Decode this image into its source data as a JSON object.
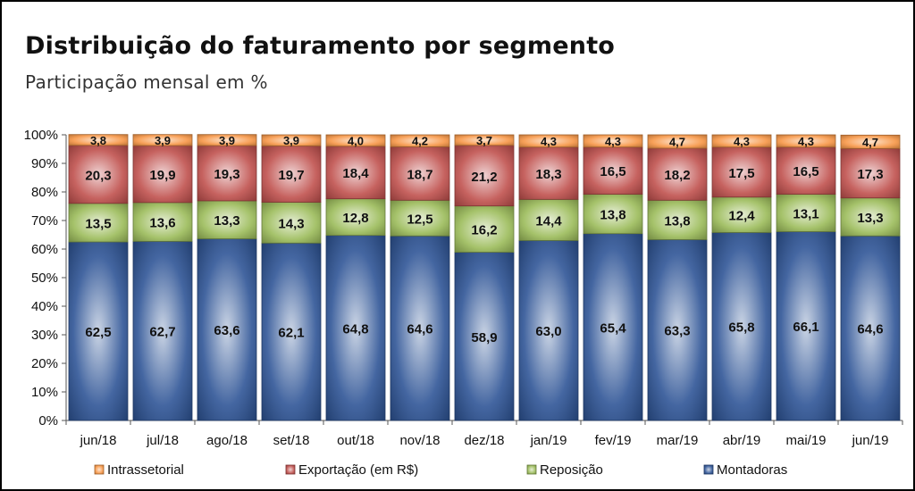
{
  "title": "Distribuição do faturamento por segmento",
  "subtitle": "Participação mensal em %",
  "chart_data": {
    "type": "bar",
    "stacked": true,
    "categories": [
      "jun/18",
      "jul/18",
      "ago/18",
      "set/18",
      "out/18",
      "nov/18",
      "dez/18",
      "jan/19",
      "fev/19",
      "mar/19",
      "abr/19",
      "mai/19",
      "jun/19"
    ],
    "series": [
      {
        "name": "Montadoras",
        "color": "#2f5597",
        "values": [
          62.5,
          62.7,
          63.6,
          62.1,
          64.8,
          64.6,
          58.9,
          63.0,
          65.4,
          63.3,
          65.8,
          66.1,
          64.6
        ],
        "labels": [
          "62,5",
          "62,7",
          "63,6",
          "62,1",
          "64,8",
          "64,6",
          "58,9",
          "63,0",
          "65,4",
          "63,3",
          "65,8",
          "66,1",
          "64,6"
        ]
      },
      {
        "name": "Reposição",
        "color": "#9bbb59",
        "values": [
          13.5,
          13.6,
          13.3,
          14.3,
          12.8,
          12.5,
          16.2,
          14.4,
          13.8,
          13.8,
          12.4,
          13.1,
          13.3
        ],
        "labels": [
          "13,5",
          "13,6",
          "13,3",
          "14,3",
          "12,8",
          "12,5",
          "16,2",
          "14,4",
          "13,8",
          "13,8",
          "12,4",
          "13,1",
          "13,3"
        ]
      },
      {
        "name": "Exportação (em R$)",
        "color": "#c0504d",
        "values": [
          20.3,
          19.9,
          19.3,
          19.7,
          18.4,
          18.7,
          21.2,
          18.3,
          16.5,
          18.2,
          17.5,
          16.5,
          17.3
        ],
        "labels": [
          "20,3",
          "19,9",
          "19,3",
          "19,7",
          "18,4",
          "18,7",
          "21,2",
          "18,3",
          "16,5",
          "18,2",
          "17,5",
          "16,5",
          "17,3"
        ]
      },
      {
        "name": "Intrassetorial",
        "color": "#f79646",
        "values": [
          3.8,
          3.9,
          3.9,
          3.9,
          4.0,
          4.2,
          3.7,
          4.3,
          4.3,
          4.7,
          4.3,
          4.3,
          4.7
        ],
        "labels": [
          "3,8",
          "3,9",
          "3,9",
          "3,9",
          "4,0",
          "4,2",
          "3,7",
          "4,3",
          "4,3",
          "4,7",
          "4,3",
          "4,3",
          "4,7"
        ]
      }
    ],
    "y_ticks": [
      "0%",
      "10%",
      "20%",
      "30%",
      "40%",
      "50%",
      "60%",
      "70%",
      "80%",
      "90%",
      "100%"
    ],
    "ylim": [
      0,
      100
    ],
    "legend": {
      "position": "bottom",
      "order": [
        "Intrassetorial",
        "Exportação (em R$)",
        "Reposição",
        "Montadoras"
      ]
    },
    "grid": false
  }
}
